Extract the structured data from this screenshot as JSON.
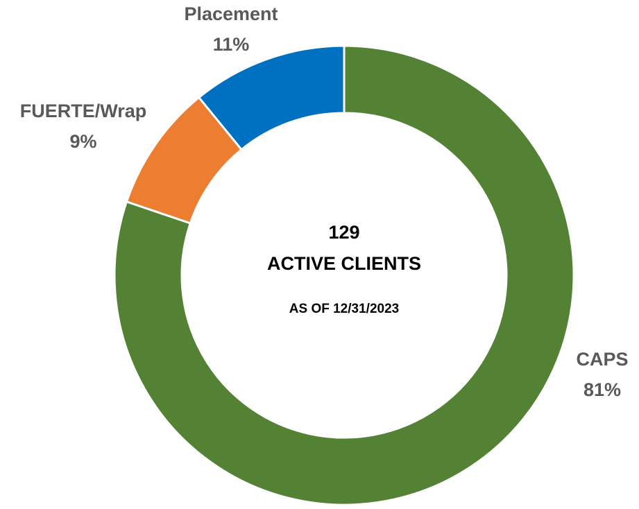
{
  "chart_data": {
    "type": "donut",
    "categories": [
      "CAPS",
      "FUERTE/Wrap",
      "Placement"
    ],
    "values": [
      81,
      9,
      11
    ],
    "value_labels": [
      "81%",
      "9%",
      "11%"
    ],
    "colors": [
      "#548235",
      "#ed7d31",
      "#0070c0"
    ],
    "center_text": [
      "129",
      "ACTIVE CLIENTS"
    ],
    "subtitle": "AS OF 12/31/2023"
  }
}
